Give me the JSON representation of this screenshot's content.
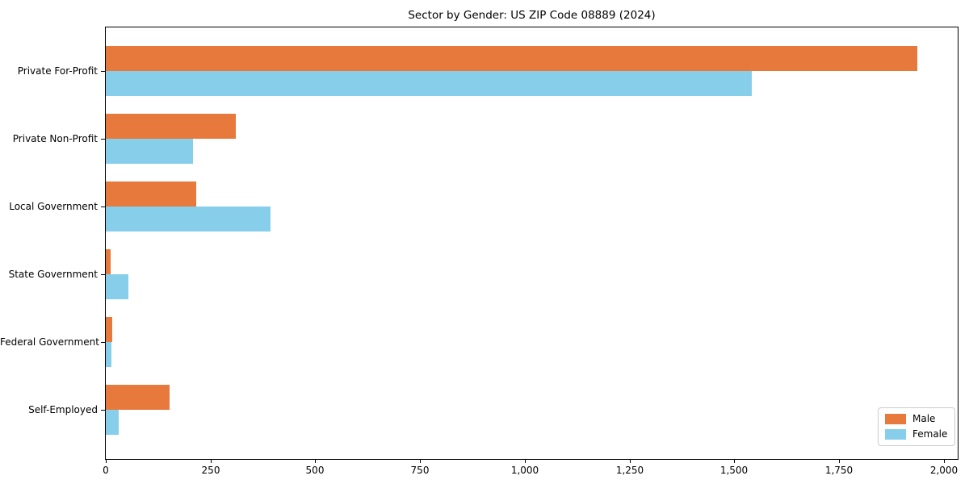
{
  "title": "Sector by Gender: US ZIP Code 08889 (2024)",
  "chart_data": {
    "type": "bar",
    "orientation": "horizontal",
    "title": "Sector by Gender: US ZIP Code 08889 (2024)",
    "xlabel": "",
    "ylabel": "",
    "grid": false,
    "categories": [
      "Private For-Profit",
      "Private Non-Profit",
      "Local Government",
      "State Government",
      "Federal Government",
      "Self-Employed"
    ],
    "series": [
      {
        "name": "Male",
        "color": "#E8793C",
        "values": [
          1936,
          310,
          216,
          12,
          15,
          152
        ]
      },
      {
        "name": "Female",
        "color": "#87CEEB",
        "values": [
          1541,
          208,
          393,
          54,
          13,
          31
        ]
      }
    ],
    "xlim": [
      0,
      2033
    ],
    "x_ticks": [
      0,
      250,
      500,
      750,
      1000,
      1250,
      1500,
      1750,
      2000
    ],
    "x_tick_labels": [
      "0",
      "250",
      "500",
      "750",
      "1,000",
      "1,250",
      "1,500",
      "1,750",
      "2,000"
    ],
    "legend_position": "lower right",
    "legend_entries": [
      "Male",
      "Female"
    ]
  }
}
